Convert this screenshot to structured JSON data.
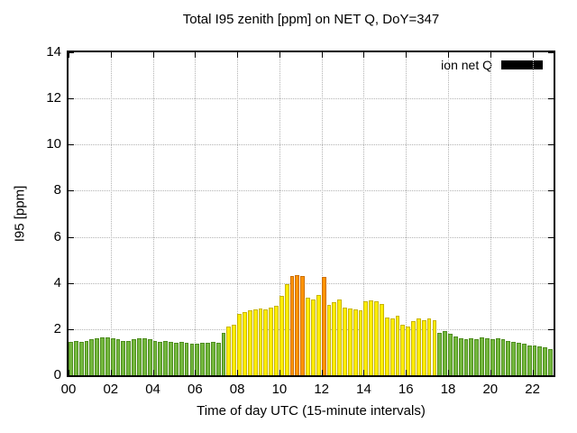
{
  "chart_data": {
    "type": "bar",
    "title": "Total I95 zenith [ppm] on NET Q, DoY=347",
    "xlabel": "Time of day UTC (15-minute intervals)",
    "ylabel": "I95 [ppm]",
    "legend": {
      "label": "ion net Q",
      "swatch_color": "#000000",
      "position": "top-right-inside"
    },
    "x_start_hour": 0,
    "interval_minutes": 15,
    "xlim": [
      0,
      23
    ],
    "ylim": [
      0,
      14
    ],
    "x_ticks": {
      "values": [
        0,
        2,
        4,
        6,
        8,
        10,
        12,
        14,
        16,
        18,
        20,
        22
      ],
      "labels": [
        "00",
        "02",
        "04",
        "06",
        "08",
        "10",
        "12",
        "14",
        "16",
        "18",
        "20",
        "22"
      ]
    },
    "y_ticks": {
      "values": [
        0,
        2,
        4,
        6,
        8,
        10,
        12,
        14
      ],
      "labels": [
        "0",
        "2",
        "4",
        "6",
        "8",
        "10",
        "12",
        "14"
      ]
    },
    "grid": "dotted",
    "colors": {
      "green": "#74b83e",
      "green_border": "#4e8c1f",
      "yellow": "#ffee00",
      "yellow_border": "#c8b400",
      "orange": "#ff9400",
      "orange_border": "#cc6e00",
      "grid": "#b3b3b3",
      "border": "#000000"
    },
    "thresholds": {
      "yellow_min": 2.0,
      "orange_min": 4.0
    },
    "values": [
      1.45,
      1.5,
      1.45,
      1.5,
      1.55,
      1.6,
      1.65,
      1.65,
      1.6,
      1.55,
      1.5,
      1.5,
      1.55,
      1.6,
      1.6,
      1.55,
      1.5,
      1.45,
      1.5,
      1.45,
      1.4,
      1.45,
      1.4,
      1.35,
      1.35,
      1.4,
      1.4,
      1.45,
      1.4,
      1.85,
      2.1,
      2.2,
      2.65,
      2.75,
      2.8,
      2.85,
      2.9,
      2.85,
      2.95,
      3.0,
      3.45,
      3.95,
      4.3,
      4.35,
      4.3,
      3.35,
      3.3,
      3.5,
      4.25,
      3.05,
      3.15,
      3.3,
      2.95,
      2.9,
      2.85,
      2.8,
      3.2,
      3.25,
      3.2,
      3.1,
      2.5,
      2.45,
      2.6,
      2.2,
      2.1,
      2.35,
      2.45,
      2.4,
      2.45,
      2.4,
      1.85,
      1.9,
      1.8,
      1.7,
      1.6,
      1.55,
      1.6,
      1.55,
      1.65,
      1.6,
      1.55,
      1.6,
      1.55,
      1.5,
      1.45,
      1.4,
      1.35,
      1.3,
      1.3,
      1.25,
      1.2,
      1.15
    ]
  }
}
